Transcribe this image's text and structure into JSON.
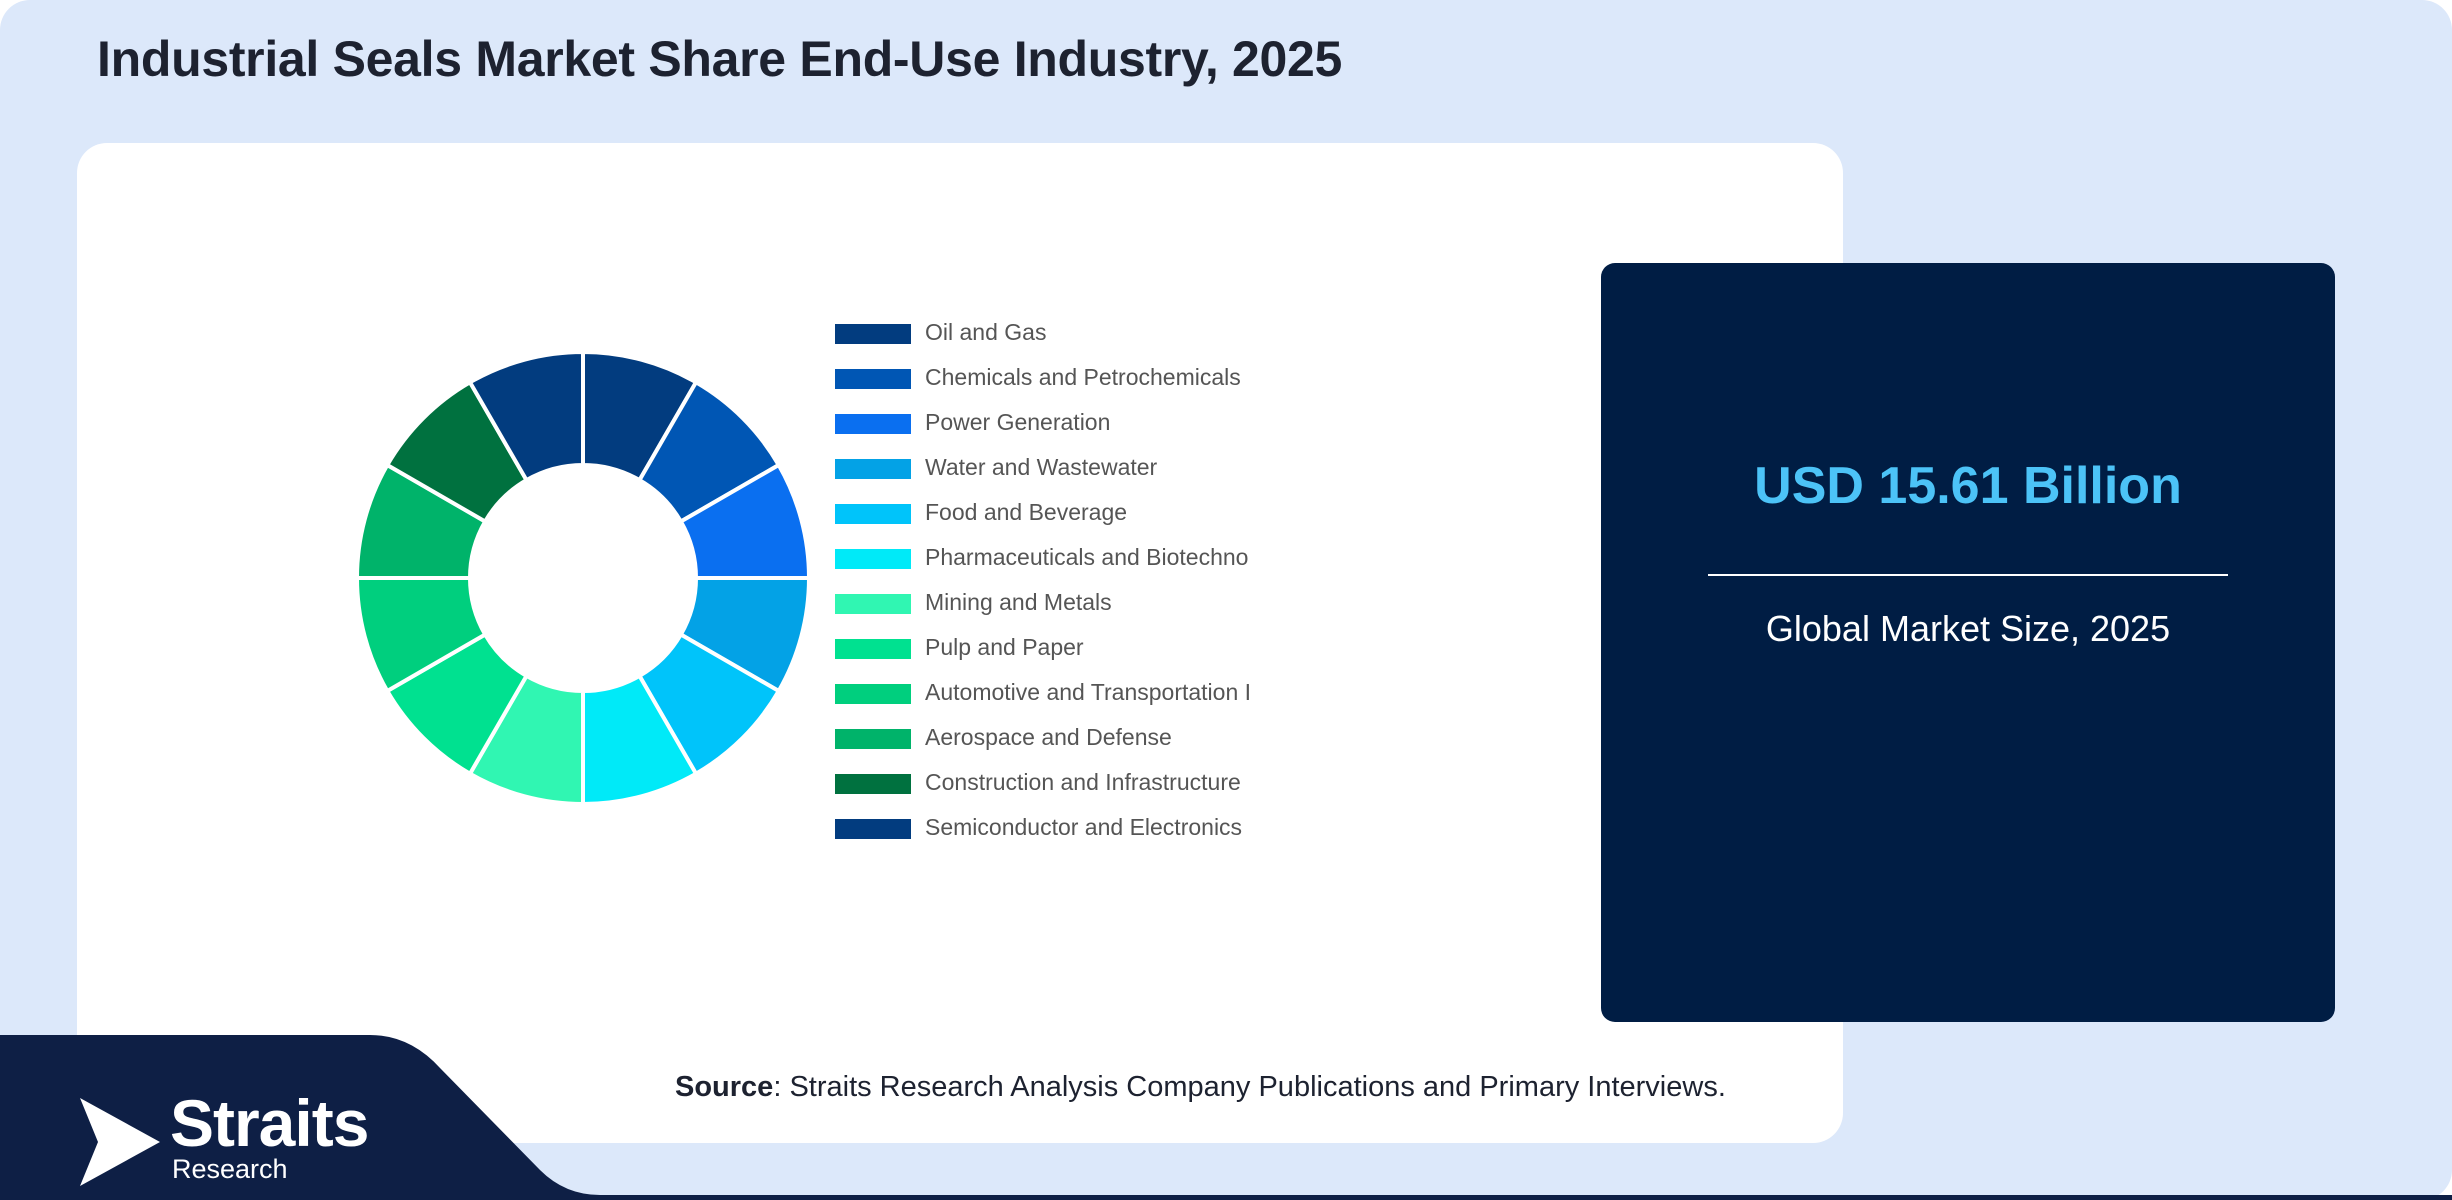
{
  "page": {
    "title": "Industrial Seals Market Share End-Use Industry, 2025"
  },
  "stat": {
    "value": "USD 15.61 Billion",
    "label": "Global Market Size, 2025"
  },
  "source": {
    "label": "Source",
    "text": ": Straits Research Analysis Company Publications and Primary Interviews."
  },
  "brand": {
    "name": "Straits",
    "sub": "Research"
  },
  "colors": {
    "background": "#dce8fa",
    "card": "#ffffff",
    "stat_card": "#001d44",
    "stat_value": "#4cc3f7",
    "footer": "#0e1f45"
  },
  "chart_data": {
    "type": "pie",
    "donut": true,
    "legend": "right",
    "categories": [
      "Oil and Gas",
      "Chemicals and Petrochemicals",
      "Power Generation",
      "Water and Wastewater",
      "Food and Beverage",
      "Pharmaceuticals and Biotechno",
      "Mining and Metals",
      "Pulp and Paper",
      "Automotive and Transportation I",
      "Aerospace and Defense",
      "Construction and Infrastructure",
      "Semiconductor and Electronics"
    ],
    "values": [
      8.33,
      8.33,
      8.33,
      8.33,
      8.33,
      8.33,
      8.33,
      8.33,
      8.33,
      8.33,
      8.33,
      8.33
    ],
    "colors": [
      "#023c7f",
      "#0056b4",
      "#0a6ff0",
      "#03a2e6",
      "#00c4fa",
      "#00eaf8",
      "#30f6b2",
      "#00e190",
      "#00cf7e",
      "#00b36a",
      "#00713f",
      "#023c7f"
    ]
  }
}
